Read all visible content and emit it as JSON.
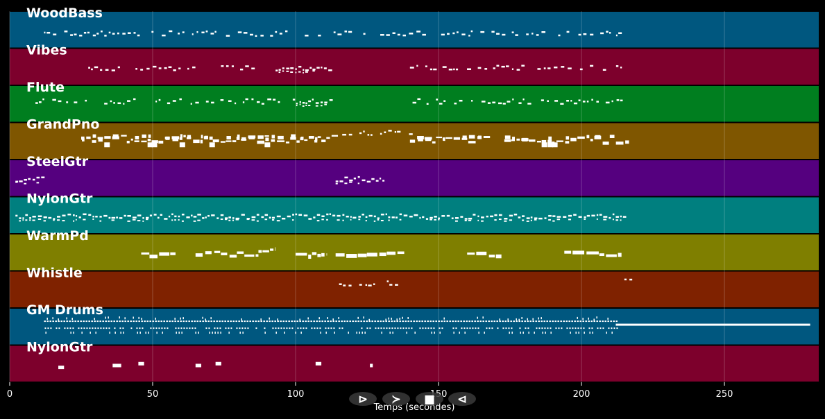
{
  "chart_data": {
    "type": "piano-roll",
    "xlabel": "Temps (secondes)",
    "xlim": [
      0,
      283
    ],
    "x_ticks": [
      0,
      50,
      100,
      150,
      200,
      250
    ],
    "grid": true,
    "background": "#000000",
    "note_color": "#ffffff",
    "tracks": [
      {
        "name": "WoodBass",
        "color": "#00577f",
        "segments": [
          [
            12,
            215,
            0.62,
            "sparse-mid"
          ]
        ]
      },
      {
        "name": "Vibes",
        "color": "#7d002c",
        "segments": [
          [
            25,
            38,
            0.55,
            "sparse"
          ],
          [
            44,
            65,
            0.55,
            "sparse"
          ],
          [
            73,
            86,
            0.55,
            "sparse"
          ],
          [
            93,
            112,
            0.55,
            "dense"
          ],
          [
            140,
            215,
            0.55,
            "sparse"
          ]
        ]
      },
      {
        "name": "Flute",
        "color": "#007e1f",
        "segments": [
          [
            9,
            44,
            0.45,
            "sparse"
          ],
          [
            51,
            95,
            0.45,
            "sparse"
          ],
          [
            99,
            112,
            0.45,
            "dense"
          ],
          [
            139,
            215,
            0.45,
            "sparse"
          ]
        ]
      },
      {
        "name": "GrandPno",
        "color": "#7f5600",
        "segments": [
          [
            25,
            114,
            0.5,
            "chords"
          ],
          [
            114,
            140,
            0.3,
            "sparse"
          ],
          [
            140,
            167,
            0.5,
            "chords"
          ],
          [
            173,
            216,
            0.5,
            "chords"
          ]
        ]
      },
      {
        "name": "SteelGtr",
        "color": "#55007f",
        "segments": [
          [
            2,
            12,
            0.55,
            "dense"
          ],
          [
            114,
            131,
            0.55,
            "dense"
          ]
        ]
      },
      {
        "name": "NylonGtr",
        "color": "#007f7f",
        "segments": [
          [
            2,
            12,
            0.55,
            "dense"
          ],
          [
            12,
            215,
            0.55,
            "dense"
          ]
        ]
      },
      {
        "name": "WarmPd",
        "color": "#7f7f00",
        "segments": [
          [
            46,
            58,
            0.55,
            "long"
          ],
          [
            65,
            87,
            0.55,
            "long"
          ],
          [
            87,
            93,
            0.45,
            "long"
          ],
          [
            100,
            111,
            0.55,
            "long"
          ],
          [
            114,
            138,
            0.55,
            "long"
          ],
          [
            160,
            172,
            0.55,
            "long"
          ],
          [
            194,
            214,
            0.55,
            "long"
          ]
        ]
      },
      {
        "name": "Whistle",
        "color": "#7f2200",
        "segments": [
          [
            113,
            138,
            0.35,
            "sparse"
          ],
          [
            215,
            217,
            0.3,
            "sparse"
          ]
        ]
      },
      {
        "name": "GM Drums",
        "color": "#00577f",
        "segments": [
          [
            12,
            212,
            0.45,
            "drums"
          ],
          [
            212,
            280,
            0.45,
            "line"
          ]
        ]
      },
      {
        "name": "NylonGtr",
        "color": "#7d002c",
        "segments": [
          [
            17,
            19,
            0.6,
            "block"
          ],
          [
            36,
            39,
            0.55,
            "block"
          ],
          [
            45,
            47,
            0.5,
            "block"
          ],
          [
            65,
            67,
            0.55,
            "block"
          ],
          [
            72,
            74,
            0.5,
            "block"
          ],
          [
            107,
            109,
            0.5,
            "block"
          ],
          [
            126,
            127,
            0.55,
            "block"
          ]
        ]
      }
    ]
  },
  "controls": {
    "buttons": [
      {
        "name": "play-button",
        "glyph": "⊳"
      },
      {
        "name": "fast-forward-button",
        "glyph": "≻"
      },
      {
        "name": "stop-button",
        "glyph": "■"
      },
      {
        "name": "rewind-button",
        "glyph": "⊲"
      }
    ]
  }
}
